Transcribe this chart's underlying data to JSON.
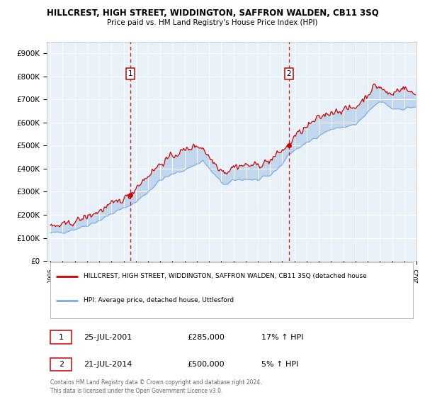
{
  "title": "HILLCREST, HIGH STREET, WIDDINGTON, SAFFRON WALDEN, CB11 3SQ",
  "subtitle": "Price paid vs. HM Land Registry's House Price Index (HPI)",
  "plot_bg_color": "#e8f0f8",
  "sale_color": "#cc0000",
  "hpi_color": "#7aaadd",
  "ylim": [
    0,
    950000
  ],
  "yticks": [
    0,
    100000,
    200000,
    300000,
    400000,
    500000,
    600000,
    700000,
    800000,
    900000
  ],
  "ytick_labels": [
    "£0",
    "£100K",
    "£200K",
    "£300K",
    "£400K",
    "£500K",
    "£600K",
    "£700K",
    "£800K",
    "£900K"
  ],
  "x_start_year": 1995,
  "x_end_year": 2025,
  "sale1_x": 2001.55,
  "sale1_price": 285000,
  "sale1_date": "25-JUL-2001",
  "sale1_hpi_pct": "17% ↑ HPI",
  "sale1_label": "1",
  "sale2_x": 2014.55,
  "sale2_price": 500000,
  "sale2_date": "21-JUL-2014",
  "sale2_hpi_pct": "5% ↑ HPI",
  "sale2_label": "2",
  "legend_line1": "HILLCREST, HIGH STREET, WIDDINGTON, SAFFRON WALDEN, CB11 3SQ (detached house",
  "legend_line2": "HPI: Average price, detached house, Uttlesford",
  "footer": "Contains HM Land Registry data © Crown copyright and database right 2024.\nThis data is licensed under the Open Government Licence v3.0."
}
